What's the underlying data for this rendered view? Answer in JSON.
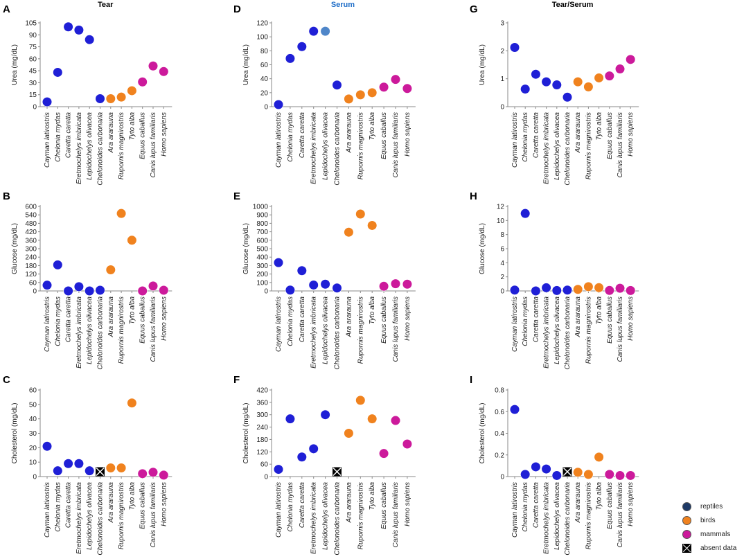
{
  "colors": {
    "reptiles": "#1f1fd6",
    "birds": "#f0821e",
    "mammals": "#cc1a9b",
    "absent": "#000000",
    "axis": "#888888",
    "title_serum": "#1f6ec8",
    "highlight_lepidochelys_serum": "#4f86c9"
  },
  "column_titles": [
    "Tear",
    "Serum",
    "Tear/Serum"
  ],
  "species": [
    "Cayman latirostris",
    "Chelonia mydas",
    "Caretta caretta",
    "Eretmochelys imbricata",
    "Lepidochelys olivacea",
    "Chelonoides carbonaria",
    "Ara ararauna",
    "Rupornis magnirostris",
    "Tyto alba",
    "Equus caballus",
    "Canis lupus familiaris",
    "Homo sapiens"
  ],
  "species_groups": [
    "reptiles",
    "reptiles",
    "reptiles",
    "reptiles",
    "reptiles",
    "reptiles",
    "birds",
    "birds",
    "birds",
    "mammals",
    "mammals",
    "mammals"
  ],
  "legend": [
    {
      "key": "reptiles",
      "label": "reptiles"
    },
    {
      "key": "birds",
      "label": "birds"
    },
    {
      "key": "mammals",
      "label": "mammals"
    },
    {
      "key": "absent",
      "label": "absent data"
    }
  ],
  "chart_data": [
    {
      "panel": "A",
      "type": "scatter",
      "title": "Tear",
      "ylabel": "Urea (mg/dL)",
      "ylim": [
        0,
        105
      ],
      "yticks": [
        0,
        15,
        30,
        45,
        60,
        75,
        90,
        105
      ],
      "values": [
        6,
        43,
        100,
        96,
        84,
        10,
        10,
        12,
        20,
        31,
        51,
        44
      ]
    },
    {
      "panel": "D",
      "type": "scatter",
      "title": "Serum",
      "ylabel": "Urea (mg/dL)",
      "ylim": [
        0,
        120
      ],
      "yticks": [
        0,
        20,
        40,
        60,
        80,
        100,
        120
      ],
      "values": [
        3,
        69,
        86,
        108,
        108,
        31,
        11,
        17,
        20,
        28,
        39,
        26
      ]
    },
    {
      "panel": "G",
      "type": "scatter",
      "title": "Tear/Serum",
      "ylabel": "Urea (mg/dL)",
      "ylim": [
        0,
        3
      ],
      "yticks": [
        0,
        1,
        2,
        3
      ],
      "values": [
        2.12,
        0.63,
        1.16,
        0.89,
        0.78,
        0.34,
        0.89,
        0.71,
        1.03,
        1.1,
        1.35,
        1.69
      ]
    },
    {
      "panel": "B",
      "type": "scatter",
      "title": "",
      "ylabel": "Glucose (mg/dL)",
      "ylim": [
        0,
        600
      ],
      "yticks": [
        0,
        60,
        120,
        180,
        240,
        300,
        360,
        420,
        480,
        540,
        600
      ],
      "values": [
        41,
        185,
        0,
        30,
        0,
        5,
        150,
        550,
        360,
        0,
        35,
        5
      ]
    },
    {
      "panel": "E",
      "type": "scatter",
      "title": "",
      "ylabel": "Glucose (mg/dL)",
      "ylim": [
        0,
        1000
      ],
      "yticks": [
        0,
        100,
        200,
        300,
        400,
        500,
        600,
        700,
        800,
        900,
        1000
      ],
      "values": [
        335,
        10,
        240,
        70,
        80,
        35,
        695,
        910,
        775,
        55,
        85,
        80
      ]
    },
    {
      "panel": "H",
      "type": "scatter",
      "title": "",
      "ylabel": "Glucose (mg/dL)",
      "ylim": [
        0,
        12
      ],
      "yticks": [
        0,
        2,
        4,
        6,
        8,
        10,
        12
      ],
      "values": [
        0.12,
        11,
        0,
        0.45,
        0.06,
        0.12,
        0.22,
        0.6,
        0.47,
        0.07,
        0.38,
        0.06
      ]
    },
    {
      "panel": "C",
      "type": "scatter",
      "title": "",
      "ylabel": "Cholesterol (mg/dL)",
      "ylim": [
        0,
        60
      ],
      "yticks": [
        0,
        10,
        20,
        30,
        40,
        50,
        60
      ],
      "values": [
        21,
        4,
        9,
        9,
        4,
        null,
        6,
        6,
        51,
        2,
        3,
        1
      ]
    },
    {
      "panel": "F",
      "type": "scatter",
      "title": "",
      "ylabel": "Cholesterol (mg/dL)",
      "ylim": [
        0,
        420
      ],
      "yticks": [
        0,
        60,
        120,
        180,
        240,
        300,
        360,
        420
      ],
      "values": [
        35,
        280,
        95,
        135,
        300,
        null,
        210,
        370,
        280,
        112,
        272,
        158
      ]
    },
    {
      "panel": "I",
      "type": "scatter",
      "title": "",
      "ylabel": "Cholesterol (mg/dL)",
      "ylim": [
        0,
        0.8
      ],
      "yticks": [
        0,
        0.2,
        0.4,
        0.6,
        0.8
      ],
      "values": [
        0.62,
        0.02,
        0.09,
        0.07,
        0.01,
        null,
        0.04,
        0.02,
        0.18,
        0.02,
        0.01,
        0.01
      ]
    }
  ]
}
